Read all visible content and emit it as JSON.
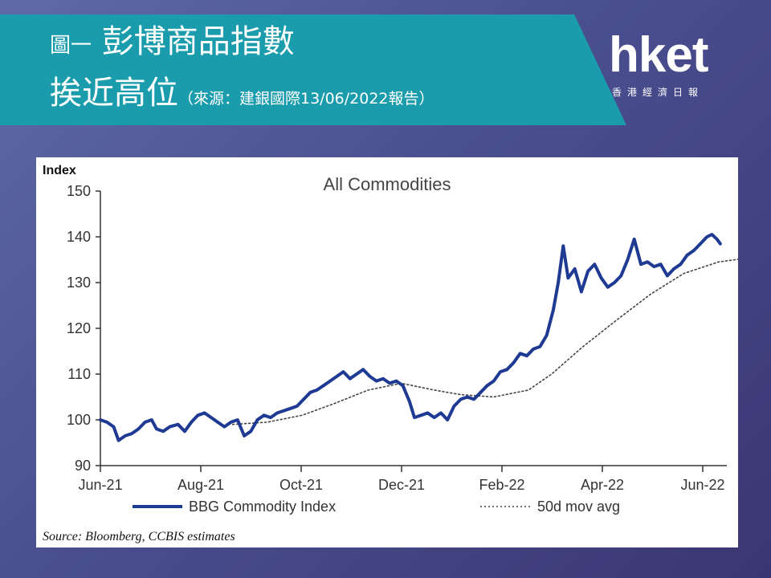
{
  "header": {
    "title_prefix": "圖一",
    "title_line1": "彭博商品指數",
    "title_line2": "挨近高位",
    "source_note": "（來源：建銀國際13/06/2022報告）"
  },
  "logo": {
    "wordmark": "hket",
    "subtitle": "香港經濟日報"
  },
  "chart_data": {
    "type": "line",
    "title": "All Commodities",
    "ylabel": "Index",
    "xlabel": "",
    "ylim": [
      90,
      150
    ],
    "yticks": [
      90,
      100,
      110,
      120,
      130,
      140,
      150
    ],
    "xticks": [
      "Jun-21",
      "Aug-21",
      "Oct-21",
      "Dec-21",
      "Feb-22",
      "Apr-22",
      "Jun-22"
    ],
    "xrange": [
      "2021-06-01",
      "2022-06-15"
    ],
    "grid": false,
    "legend_position": "bottom",
    "source": "Source: Bloomberg, CCBIS estimates",
    "series": [
      {
        "name": "BBG Commodity Index",
        "style": "solid",
        "color": "#1f3a93",
        "points": [
          [
            "2021-06-01",
            100.0
          ],
          [
            "2021-06-05",
            99.5
          ],
          [
            "2021-06-09",
            98.5
          ],
          [
            "2021-06-12",
            95.5
          ],
          [
            "2021-06-16",
            96.5
          ],
          [
            "2021-06-20",
            97.0
          ],
          [
            "2021-06-24",
            98.0
          ],
          [
            "2021-06-28",
            99.5
          ],
          [
            "2021-07-02",
            100.0
          ],
          [
            "2021-07-05",
            98.0
          ],
          [
            "2021-07-09",
            97.5
          ],
          [
            "2021-07-13",
            98.5
          ],
          [
            "2021-07-18",
            99.0
          ],
          [
            "2021-07-22",
            97.5
          ],
          [
            "2021-07-26",
            99.5
          ],
          [
            "2021-07-30",
            101.0
          ],
          [
            "2021-08-03",
            101.5
          ],
          [
            "2021-08-07",
            100.5
          ],
          [
            "2021-08-11",
            99.5
          ],
          [
            "2021-08-15",
            98.5
          ],
          [
            "2021-08-19",
            99.5
          ],
          [
            "2021-08-23",
            100.0
          ],
          [
            "2021-08-27",
            96.5
          ],
          [
            "2021-08-31",
            97.5
          ],
          [
            "2021-09-04",
            100.0
          ],
          [
            "2021-09-08",
            101.0
          ],
          [
            "2021-09-12",
            100.5
          ],
          [
            "2021-09-16",
            101.5
          ],
          [
            "2021-09-20",
            102.0
          ],
          [
            "2021-09-24",
            102.5
          ],
          [
            "2021-09-28",
            103.0
          ],
          [
            "2021-10-02",
            104.5
          ],
          [
            "2021-10-06",
            106.0
          ],
          [
            "2021-10-10",
            106.5
          ],
          [
            "2021-10-14",
            107.5
          ],
          [
            "2021-10-18",
            108.5
          ],
          [
            "2021-10-22",
            109.5
          ],
          [
            "2021-10-26",
            110.5
          ],
          [
            "2021-10-30",
            109.0
          ],
          [
            "2021-11-03",
            110.0
          ],
          [
            "2021-11-07",
            111.0
          ],
          [
            "2021-11-11",
            109.5
          ],
          [
            "2021-11-15",
            108.5
          ],
          [
            "2021-11-19",
            109.0
          ],
          [
            "2021-11-23",
            108.0
          ],
          [
            "2021-11-27",
            108.5
          ],
          [
            "2021-12-01",
            107.5
          ],
          [
            "2021-12-05",
            104.0
          ],
          [
            "2021-12-08",
            100.5
          ],
          [
            "2021-12-12",
            101.0
          ],
          [
            "2021-12-16",
            101.5
          ],
          [
            "2021-12-20",
            100.5
          ],
          [
            "2021-12-24",
            101.5
          ],
          [
            "2021-12-28",
            100.0
          ],
          [
            "2022-01-01",
            103.0
          ],
          [
            "2022-01-05",
            104.5
          ],
          [
            "2022-01-09",
            105.0
          ],
          [
            "2022-01-13",
            104.5
          ],
          [
            "2022-01-17",
            106.0
          ],
          [
            "2022-01-21",
            107.5
          ],
          [
            "2022-01-25",
            108.5
          ],
          [
            "2022-01-29",
            110.5
          ],
          [
            "2022-02-02",
            111.0
          ],
          [
            "2022-02-06",
            112.5
          ],
          [
            "2022-02-10",
            114.5
          ],
          [
            "2022-02-14",
            114.0
          ],
          [
            "2022-02-18",
            115.5
          ],
          [
            "2022-02-22",
            116.0
          ],
          [
            "2022-02-26",
            118.5
          ],
          [
            "2022-03-02",
            124.0
          ],
          [
            "2022-03-05",
            130.0
          ],
          [
            "2022-03-08",
            138.0
          ],
          [
            "2022-03-11",
            131.0
          ],
          [
            "2022-03-15",
            133.0
          ],
          [
            "2022-03-19",
            128.0
          ],
          [
            "2022-03-23",
            132.5
          ],
          [
            "2022-03-27",
            134.0
          ],
          [
            "2022-03-31",
            131.0
          ],
          [
            "2022-04-04",
            129.0
          ],
          [
            "2022-04-08",
            130.0
          ],
          [
            "2022-04-12",
            131.5
          ],
          [
            "2022-04-16",
            135.0
          ],
          [
            "2022-04-20",
            139.5
          ],
          [
            "2022-04-24",
            134.0
          ],
          [
            "2022-04-28",
            134.5
          ],
          [
            "2022-05-02",
            133.5
          ],
          [
            "2022-05-06",
            134.0
          ],
          [
            "2022-05-10",
            131.5
          ],
          [
            "2022-05-14",
            133.0
          ],
          [
            "2022-05-18",
            134.0
          ],
          [
            "2022-05-22",
            136.0
          ],
          [
            "2022-05-26",
            137.0
          ],
          [
            "2022-05-30",
            138.5
          ],
          [
            "2022-06-03",
            140.0
          ],
          [
            "2022-06-06",
            140.5
          ],
          [
            "2022-06-09",
            139.5
          ],
          [
            "2022-06-11",
            138.5
          ]
        ]
      },
      {
        "name": "50d mov avg",
        "style": "dotted",
        "color": "#444444",
        "points": [
          [
            "2021-08-20",
            99.0
          ],
          [
            "2021-09-10",
            99.5
          ],
          [
            "2021-10-01",
            101.0
          ],
          [
            "2021-10-20",
            103.5
          ],
          [
            "2021-11-10",
            106.5
          ],
          [
            "2021-11-30",
            108.0
          ],
          [
            "2021-12-20",
            106.5
          ],
          [
            "2022-01-05",
            105.5
          ],
          [
            "2022-01-25",
            105.0
          ],
          [
            "2022-02-15",
            106.5
          ],
          [
            "2022-03-01",
            110.0
          ],
          [
            "2022-03-20",
            116.0
          ],
          [
            "2022-04-10",
            122.0
          ],
          [
            "2022-04-30",
            127.5
          ],
          [
            "2022-05-20",
            132.0
          ],
          [
            "2022-06-10",
            134.5
          ],
          [
            "2022-06-30",
            135.5
          ]
        ]
      }
    ]
  }
}
